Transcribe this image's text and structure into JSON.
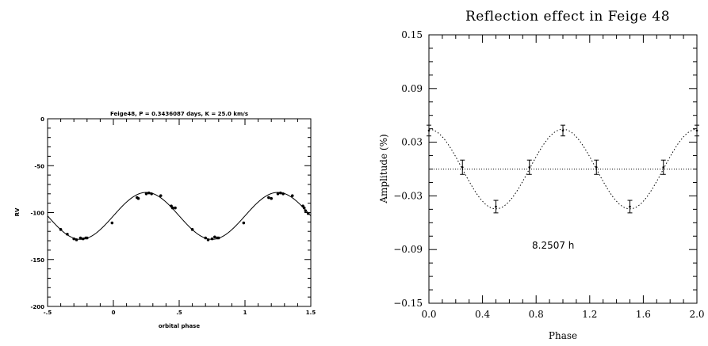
{
  "chart_data": [
    {
      "type": "scatter",
      "title": "Feige48, P = 0.3436087 days, K = 25.0 km/s",
      "xlabel": "orbital phase",
      "ylabel": "RV",
      "xlim": [
        -0.5,
        1.5
      ],
      "ylim": [
        -200,
        0
      ],
      "xticks": [
        -0.5,
        0,
        0.5,
        1,
        1.5
      ],
      "xtick_labels": [
        "-.5",
        "0",
        ".5",
        "1",
        "1.5"
      ],
      "yticks": [
        -200,
        -150,
        -100,
        -50,
        0
      ],
      "ytick_labels": [
        "-200",
        "-150",
        "-100",
        "-50",
        "0"
      ],
      "model": {
        "gamma": -103.5,
        "K": 25.0,
        "phase0": -0.25
      },
      "series": [
        {
          "x": [
            -0.4,
            -0.35,
            -0.3,
            -0.28,
            -0.25,
            -0.23,
            -0.21,
            -0.2,
            -0.01,
            0.18,
            0.19,
            0.25,
            0.27,
            0.29,
            0.36,
            0.44,
            0.45,
            0.47,
            0.6,
            0.7,
            0.72,
            0.75,
            0.77,
            0.79,
            0.8,
            0.99,
            1.18,
            1.2,
            1.25,
            1.27,
            1.29,
            1.36,
            1.44,
            1.45,
            1.46,
            1.48
          ],
          "y": [
            -118,
            -123,
            -128,
            -129,
            -127,
            -128,
            -127,
            -127,
            -111,
            -84,
            -85,
            -80,
            -79,
            -80,
            -82,
            -93,
            -95,
            -95,
            -118,
            -127,
            -129,
            -128,
            -126,
            -127,
            -127,
            -111,
            -84,
            -85,
            -80,
            -79,
            -80,
            -82,
            -93,
            -95,
            -98,
            -101
          ]
        }
      ]
    },
    {
      "type": "line",
      "title": "Reflection effect in Feige 48",
      "xlabel": "Phase",
      "ylabel": "Amplitude (%)",
      "xlim": [
        0,
        2
      ],
      "ylim": [
        -0.15,
        0.15
      ],
      "xticks": [
        0,
        0.4,
        0.8,
        1.2,
        1.6,
        2.0
      ],
      "xtick_labels": [
        "0.0",
        "0.4",
        "0.8",
        "1.2",
        "1.6",
        "2.0"
      ],
      "yticks": [
        -0.15,
        -0.09,
        -0.03,
        0.03,
        0.09,
        0.15
      ],
      "ytick_labels": [
        "−0.15",
        "−0.09",
        "−0.03",
        "0.03",
        "0.09",
        "0.15"
      ],
      "annotation": "8.2507 h",
      "model": {
        "amplitude": 0.0445,
        "baseline": 0.0
      },
      "series": [
        {
          "x": [
            0.0,
            0.25,
            0.5,
            0.75,
            1.0,
            1.25,
            1.5,
            1.75,
            2.0
          ],
          "y": [
            0.043,
            0.002,
            -0.042,
            0.002,
            0.043,
            0.002,
            -0.042,
            0.002,
            0.043
          ],
          "err": [
            0.006,
            0.008,
            0.007,
            0.008,
            0.006,
            0.008,
            0.007,
            0.008,
            0.006
          ]
        }
      ]
    }
  ]
}
